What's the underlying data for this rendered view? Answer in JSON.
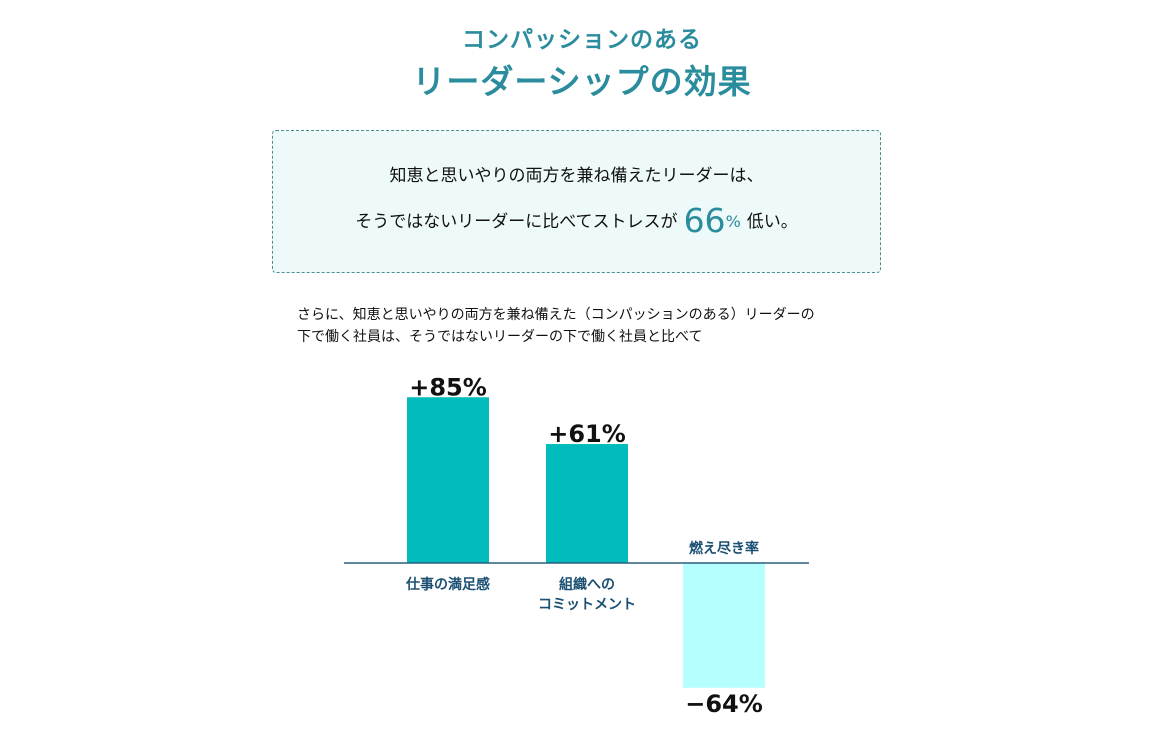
{
  "header": {
    "title_line1": "コンパッションのある",
    "title_line2": "リーダーシップの効果"
  },
  "callout": {
    "line1": "知恵と思いやりの両方を兼ね備えたリーダーは、",
    "line2_before": "そうではないリーダーに比べてストレスが",
    "value": "66",
    "unit": "%",
    "line2_after": "低い。"
  },
  "note": {
    "line1": "さらに、知恵と思いやりの両方を兼ね備えた（コンパッションのある）リーダーの",
    "line2": "下で働く社員は、そうではないリーダーの下で働く社員と比べて"
  },
  "chart_data": {
    "type": "bar",
    "categories": [
      [
        "仕事の満足感"
      ],
      [
        "組織への",
        "コミットメント"
      ],
      [
        "燃え尽き率"
      ]
    ],
    "values": [
      85,
      61,
      -64
    ],
    "value_labels": [
      "+85%",
      "+61%",
      "−64%"
    ],
    "unit": "%",
    "colors": {
      "positive": "#00bcbc",
      "negative": "#b5ffff",
      "axis": "#2a5f7a",
      "category_text": "#1a4f72"
    }
  }
}
